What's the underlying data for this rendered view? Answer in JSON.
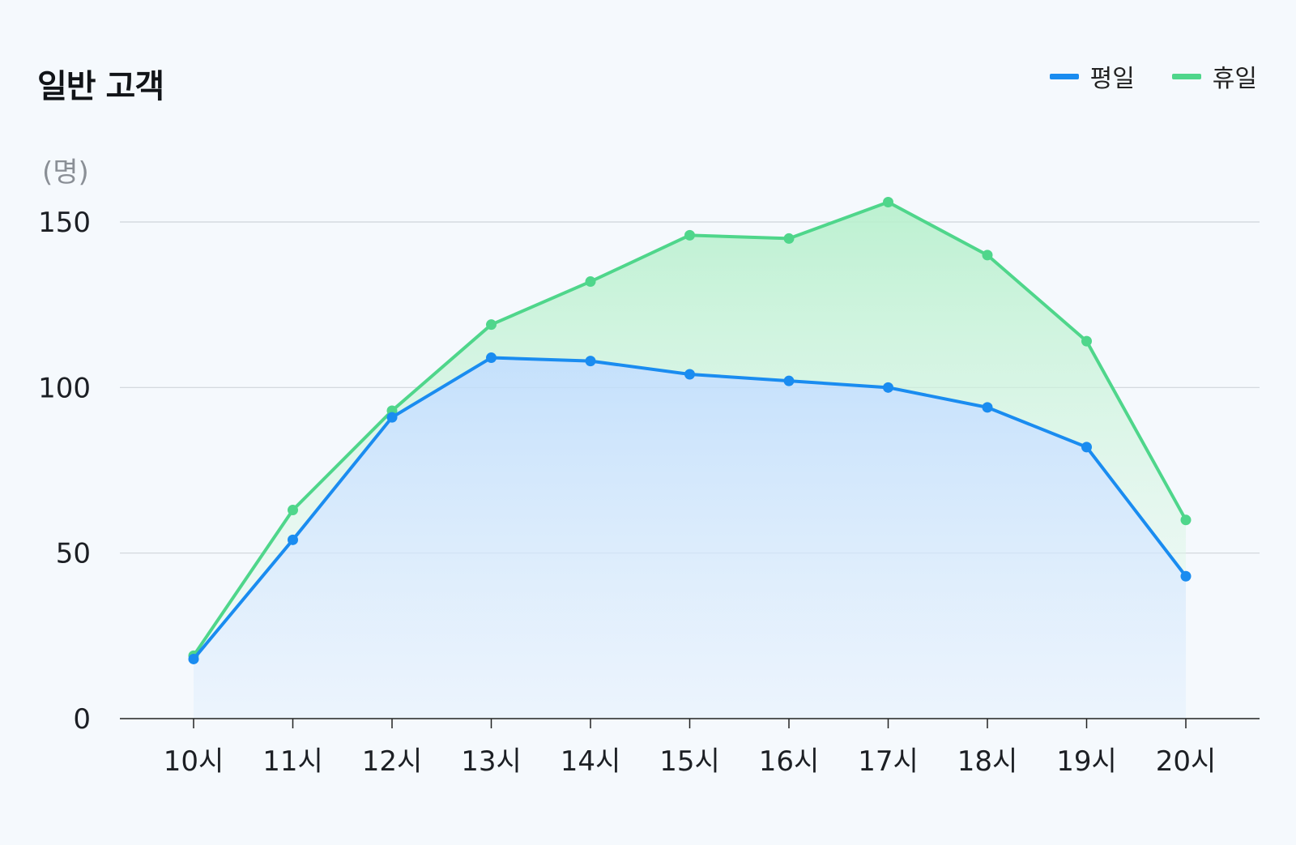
{
  "title": "일반 고객",
  "legend": [
    {
      "label": "평일",
      "color": "#1a8cf0"
    },
    {
      "label": "휴일",
      "color": "#4fd68b"
    }
  ],
  "chart_data": {
    "type": "area",
    "title": "일반 고객",
    "ylabel": "(명)",
    "categories": [
      "10시",
      "11시",
      "12시",
      "13시",
      "14시",
      "15시",
      "16시",
      "17시",
      "18시",
      "19시",
      "20시"
    ],
    "ylim": [
      0,
      150
    ],
    "yticks": [
      "0",
      "50",
      "100",
      "150"
    ],
    "grid": true,
    "legend_position": "top-right",
    "series": [
      {
        "name": "평일",
        "color": "#1a8cf0",
        "values": [
          18,
          54,
          91,
          109,
          108,
          104,
          102,
          100,
          94,
          82,
          43
        ]
      },
      {
        "name": "휴일",
        "color": "#4fd68b",
        "values": [
          19,
          63,
          93,
          119,
          132,
          146,
          145,
          156,
          140,
          114,
          60
        ]
      }
    ]
  }
}
